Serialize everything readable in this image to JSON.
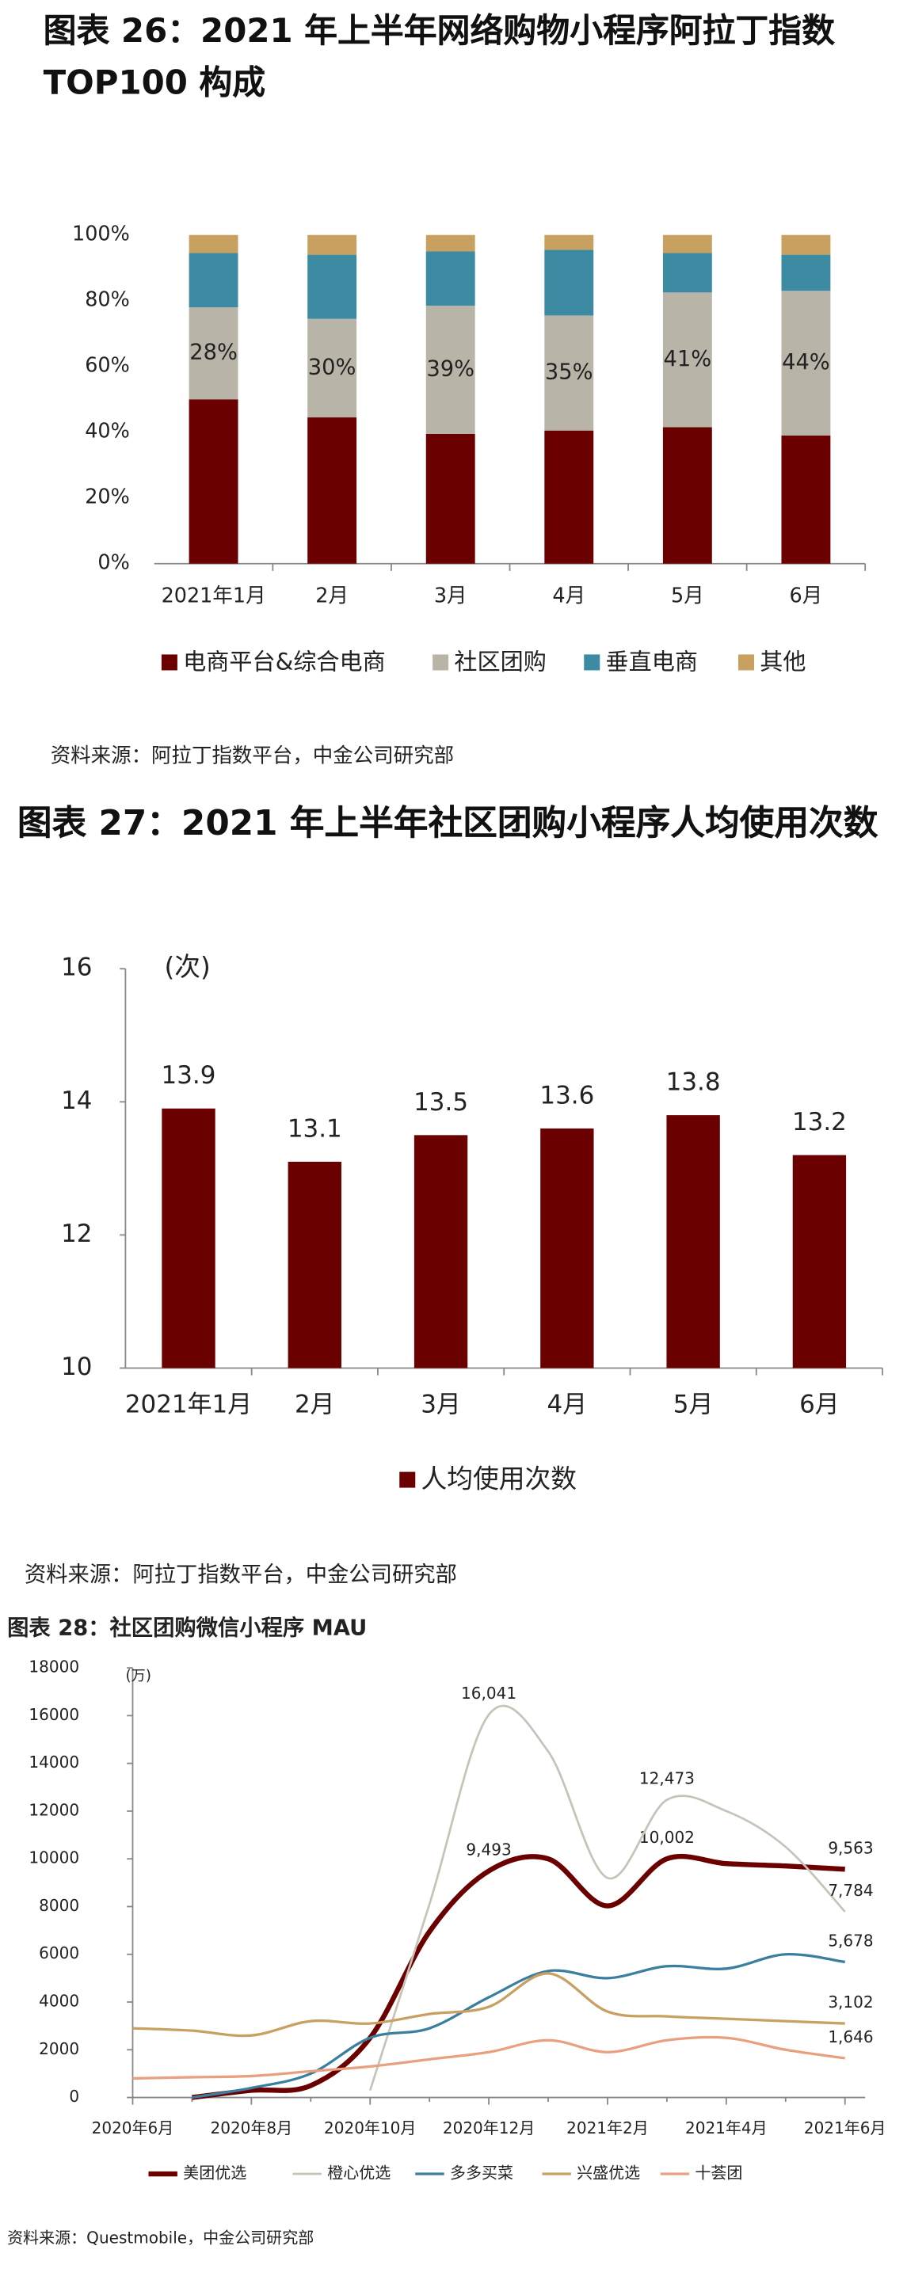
{
  "chart_data": [
    {
      "type": "bar",
      "stacked": true,
      "title": "图表 26：2021 年上半年网络购物小程序阿拉丁指数 TOP100 构成",
      "categories": [
        "2021年1月",
        "2月",
        "3月",
        "4月",
        "5月",
        "6月"
      ],
      "series": [
        {
          "name": "电商平台&综合电商",
          "color": "#6b0000",
          "values": [
            50,
            44.5,
            39.5,
            40.5,
            41.5,
            39
          ]
        },
        {
          "name": "社区团购",
          "color": "#b8b5a8",
          "values": [
            28,
            30,
            39,
            35,
            41,
            44
          ],
          "value_labels": [
            "28%",
            "30%",
            "39%",
            "35%",
            "41%",
            "44%"
          ]
        },
        {
          "name": "垂直电商",
          "color": "#3d8aa3",
          "values": [
            16.5,
            19.5,
            16.5,
            20,
            12,
            11
          ]
        },
        {
          "name": "其他",
          "color": "#c8a060",
          "values": [
            5.5,
            6,
            5,
            4.5,
            5.5,
            6
          ]
        }
      ],
      "ylim": [
        0,
        100
      ],
      "yticks": [
        {
          "value": 0,
          "label": "0%"
        },
        {
          "value": 20,
          "label": "20%"
        },
        {
          "value": 40,
          "label": "40%"
        },
        {
          "value": 60,
          "label": "60%"
        },
        {
          "value": 80,
          "label": "80%"
        },
        {
          "value": 100,
          "label": "100%"
        }
      ],
      "legend": "bottom",
      "source": "资料来源：阿拉丁指数平台，中金公司研究部"
    },
    {
      "type": "bar",
      "title": "图表 27：2021 年上半年社区团购小程序人均使用次数",
      "y_label": "(次)",
      "categories": [
        "2021年1月",
        "2月",
        "3月",
        "4月",
        "5月",
        "6月"
      ],
      "series": [
        {
          "name": "人均使用次数",
          "color": "#6b0000",
          "values": [
            13.9,
            13.1,
            13.5,
            13.6,
            13.8,
            13.2
          ]
        }
      ],
      "ylim": [
        10,
        16
      ],
      "yticks": [
        10,
        12,
        14,
        16
      ],
      "legend": "bottom",
      "source": "资料来源：阿拉丁指数平台，中金公司研究部"
    },
    {
      "type": "line",
      "title": "图表 28：社区团购微信小程序 MAU",
      "y_label": "(万)",
      "categories": [
        "2020年6月",
        null,
        "2020年8月",
        null,
        "2020年10月",
        null,
        "2020年12月",
        null,
        "2021年2月",
        null,
        "2021年4月",
        null,
        "2021年6月"
      ],
      "series": [
        {
          "name": "美团优选",
          "color": "#6b0000",
          "width": 3.5,
          "values": [
            null,
            0,
            300,
            500,
            2500,
            6950,
            9493,
            10000,
            8030,
            10002,
            9800,
            9700,
            9563
          ],
          "value_labels": [
            null,
            null,
            null,
            null,
            null,
            null,
            "9,493",
            null,
            null,
            "10,002",
            null,
            null,
            "9,563"
          ]
        },
        {
          "name": "橙心优选",
          "color": "#c8c3b8",
          "width": 1.5,
          "values": [
            null,
            null,
            null,
            null,
            300,
            8100,
            16041,
            14500,
            9200,
            12473,
            12000,
            10500,
            7784
          ],
          "value_labels": [
            null,
            null,
            null,
            null,
            null,
            null,
            "16,041",
            null,
            null,
            "12,473",
            null,
            null,
            "7,784"
          ]
        },
        {
          "name": "多多买菜",
          "color": "#3a7fa0",
          "width": 1.8,
          "values": [
            null,
            0,
            400,
            1000,
            2500,
            2900,
            4200,
            5300,
            5000,
            5500,
            5400,
            6000,
            5678
          ],
          "value_labels": [
            null,
            null,
            null,
            null,
            null,
            null,
            null,
            null,
            null,
            null,
            null,
            null,
            "5,678"
          ]
        },
        {
          "name": "兴盛优选",
          "color": "#c8a060",
          "width": 1.8,
          "values": [
            2900,
            2800,
            2600,
            3200,
            3100,
            3500,
            3800,
            5200,
            3600,
            3400,
            3300,
            3200,
            3102
          ],
          "value_labels": [
            null,
            null,
            null,
            null,
            null,
            null,
            null,
            null,
            null,
            null,
            null,
            null,
            "3,102"
          ]
        },
        {
          "name": "十荟团",
          "color": "#e8a080",
          "width": 1.8,
          "values": [
            800,
            850,
            900,
            1100,
            1300,
            1600,
            1900,
            2400,
            1900,
            2400,
            2500,
            2000,
            1646
          ],
          "value_labels": [
            null,
            null,
            null,
            null,
            null,
            null,
            null,
            null,
            null,
            null,
            null,
            null,
            "1,646"
          ]
        }
      ],
      "ylim": [
        0,
        18000
      ],
      "yticks": [
        0,
        2000,
        4000,
        6000,
        8000,
        10000,
        12000,
        14000,
        16000,
        18000
      ],
      "legend": "bottom",
      "source": "资料来源：Questmobile，中金公司研究部"
    }
  ]
}
